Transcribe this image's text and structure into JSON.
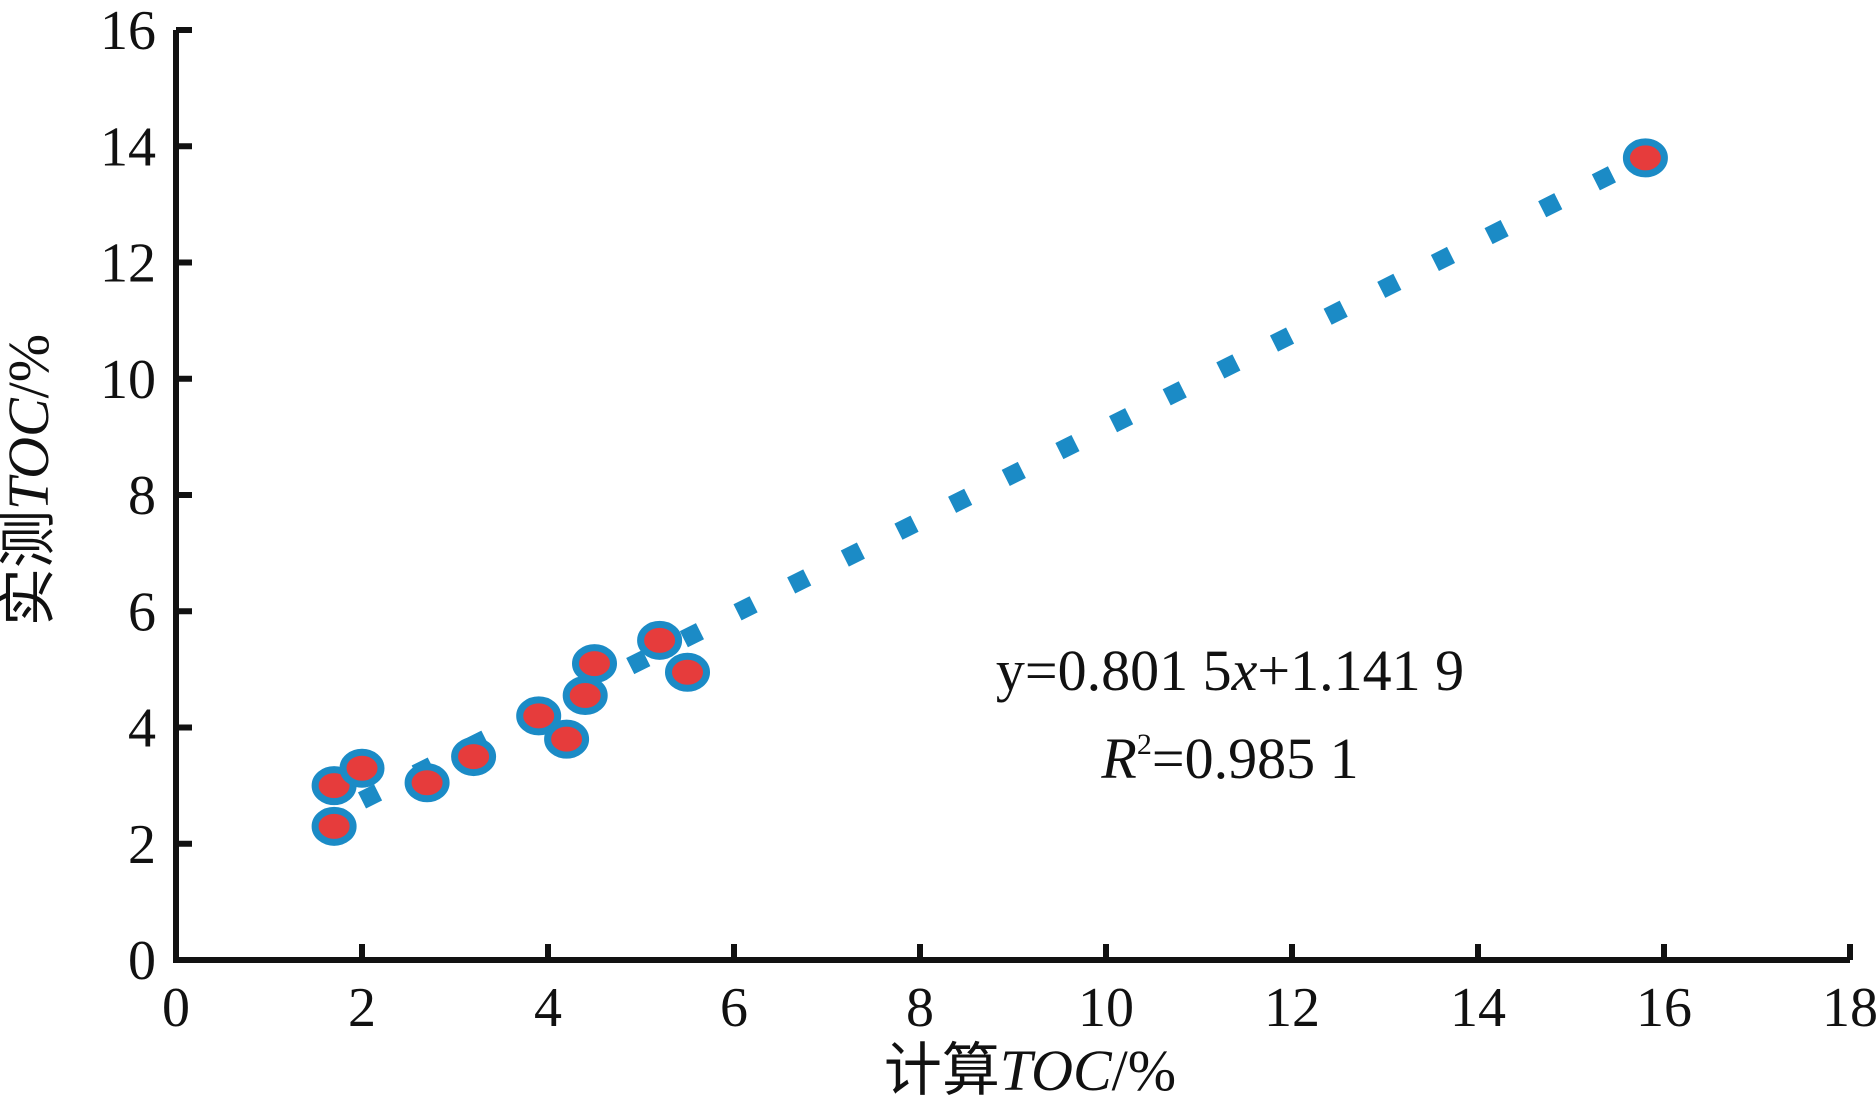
{
  "chart_data": {
    "type": "scatter",
    "title": "",
    "xlabel": {
      "prefix": "计算",
      "italic": "TOC",
      "suffix": "/%"
    },
    "ylabel": {
      "prefix": "实测",
      "italic": "TOC",
      "suffix": "/%"
    },
    "xlim": [
      0,
      18
    ],
    "ylim": [
      0,
      16
    ],
    "xticks": [
      0,
      2,
      4,
      6,
      8,
      10,
      12,
      14,
      16,
      18
    ],
    "yticks": [
      0,
      2,
      4,
      6,
      8,
      10,
      12,
      14,
      16
    ],
    "grid": false,
    "legend": "none",
    "points": [
      {
        "x": 1.7,
        "y": 3.0
      },
      {
        "x": 1.7,
        "y": 2.3
      },
      {
        "x": 2.0,
        "y": 3.3
      },
      {
        "x": 2.7,
        "y": 3.05
      },
      {
        "x": 3.2,
        "y": 3.5
      },
      {
        "x": 3.9,
        "y": 4.2
      },
      {
        "x": 4.2,
        "y": 3.8
      },
      {
        "x": 4.4,
        "y": 4.55
      },
      {
        "x": 4.5,
        "y": 5.1
      },
      {
        "x": 5.2,
        "y": 5.5
      },
      {
        "x": 5.5,
        "y": 4.95
      },
      {
        "x": 15.8,
        "y": 13.8
      }
    ],
    "trendline": {
      "slope": 0.8015,
      "intercept": 1.1419,
      "x_range": [
        2.0,
        15.8
      ],
      "style": "dotted",
      "color": "#1b8bc6"
    },
    "annotation": {
      "equation": {
        "pre": "y=0.801 5",
        "var": "x",
        "post": "+1.141 9"
      },
      "r2": {
        "var": "R",
        "sup": "2",
        "post": "=0.985 1"
      }
    },
    "colors": {
      "point_fill": "#e63c3c",
      "point_ring": "#1b8bc6",
      "axis": "#111111"
    }
  }
}
